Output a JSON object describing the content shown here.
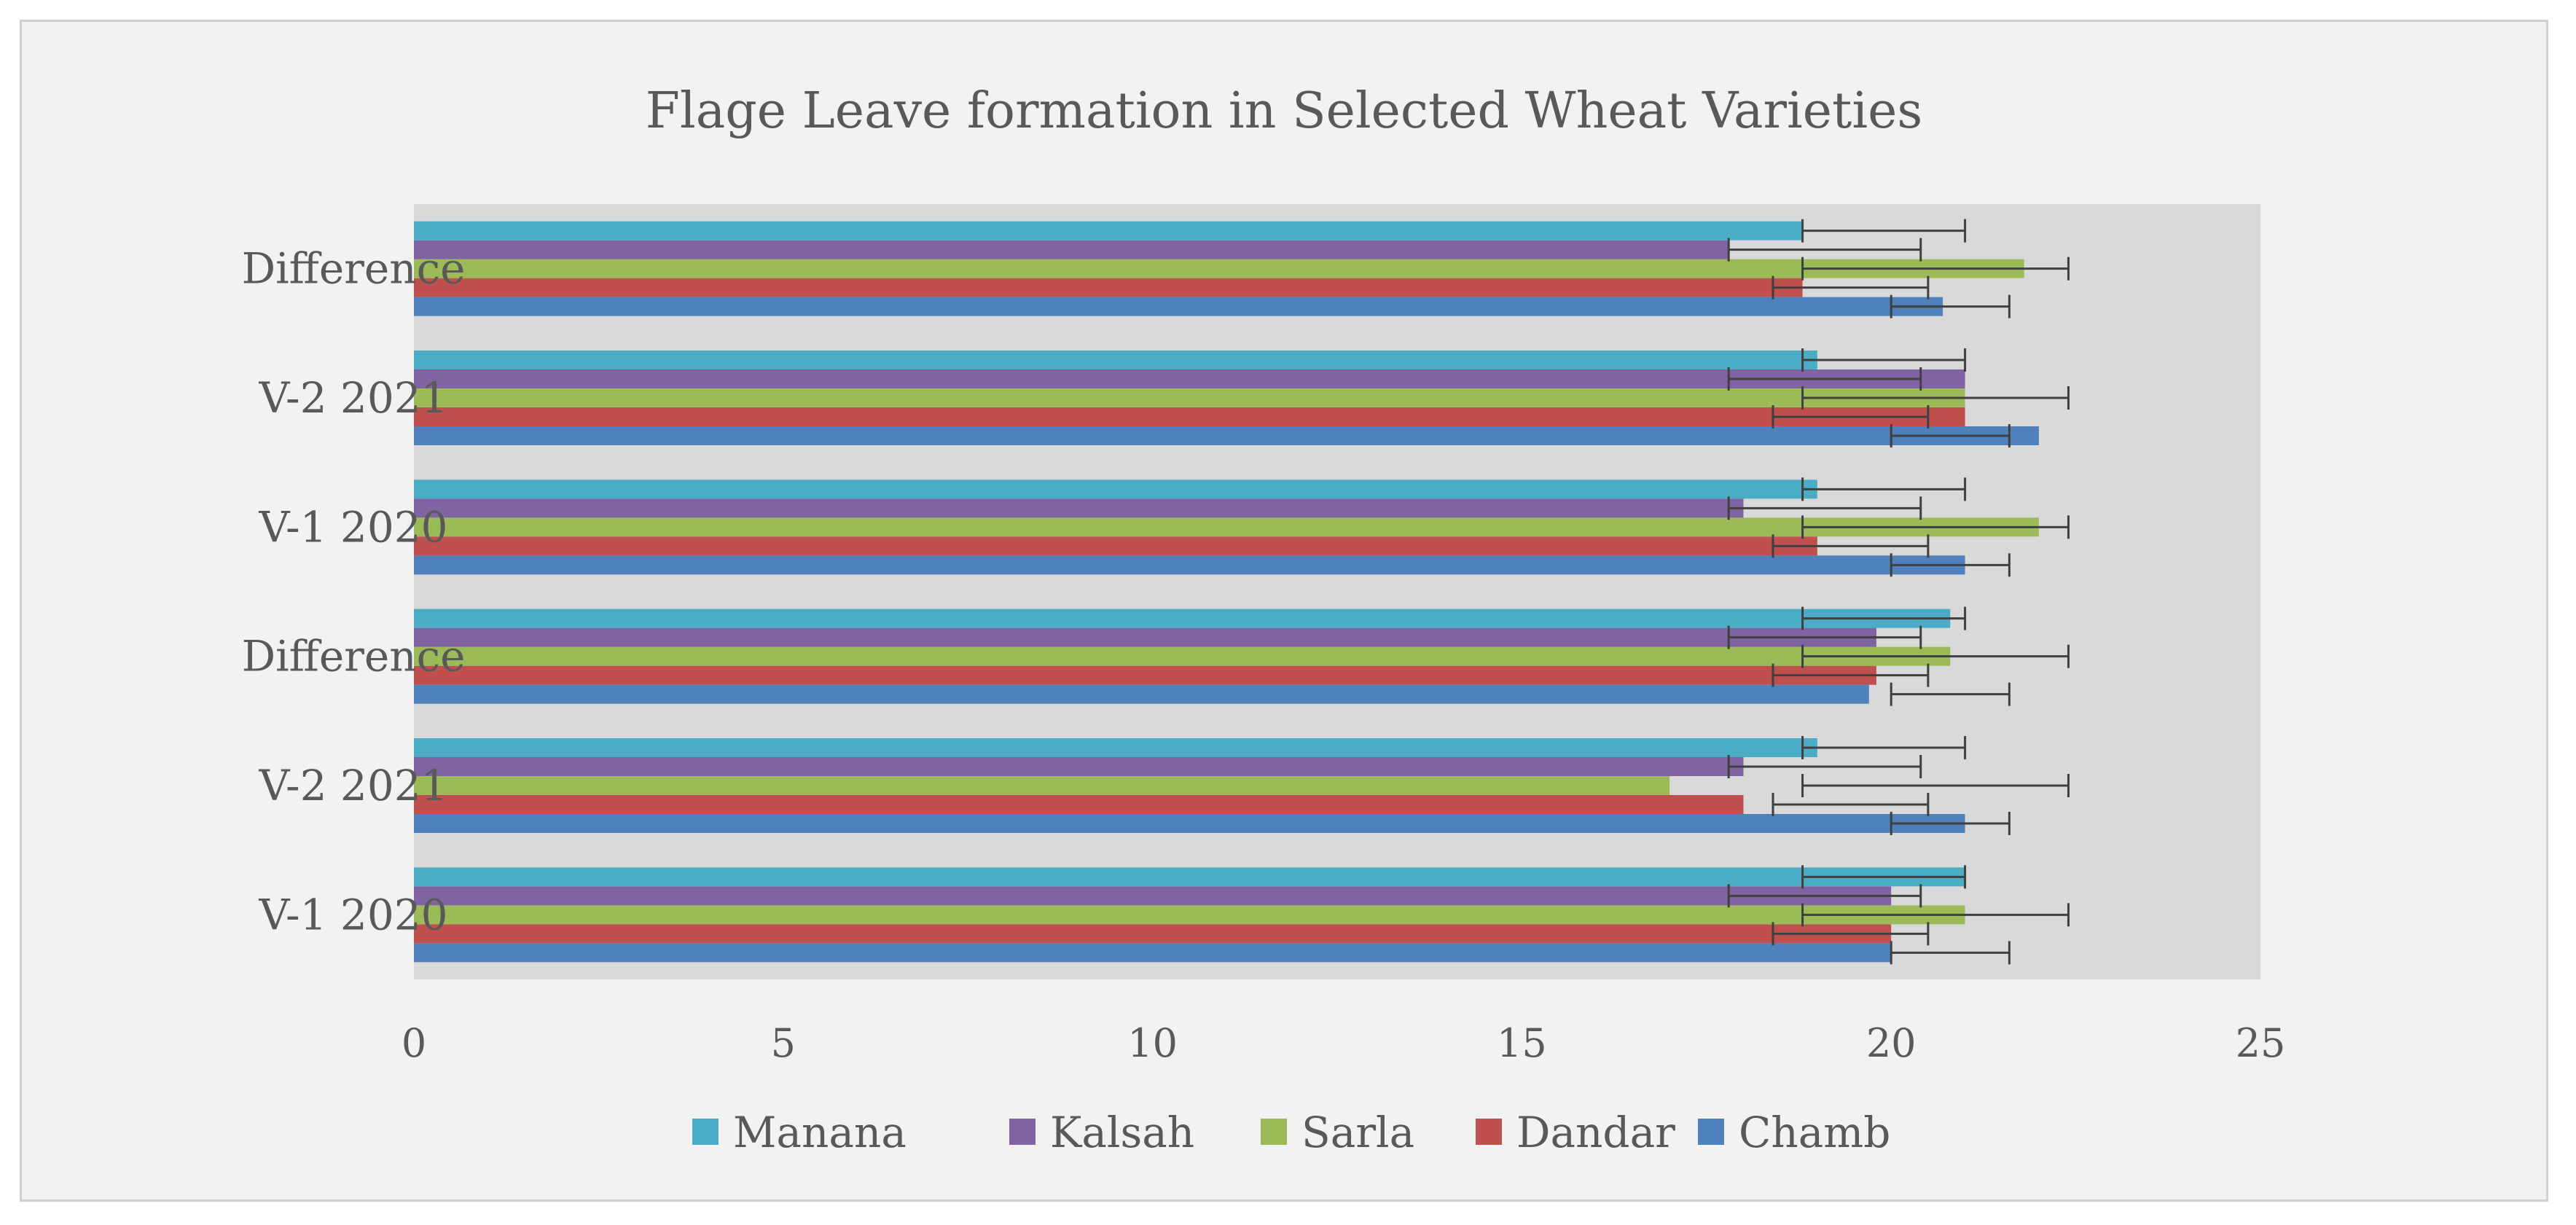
{
  "chart_data": {
    "type": "bar",
    "orientation": "horizontal",
    "title": "Flage Leave formation in Selected Wheat Varieties",
    "categories": [
      "V-1 2020",
      "V-2 2021",
      "Difference",
      "V-1 2020",
      "V-2 2021",
      "Difference"
    ],
    "xlim": [
      0,
      25
    ],
    "xticks": [
      0,
      5,
      10,
      15,
      20,
      25
    ],
    "xlabel": "",
    "ylabel": "",
    "legend_position": "bottom",
    "series": [
      {
        "name": "Chamb",
        "color": "#4f81bd",
        "values": [
          20,
          21,
          19.7,
          21,
          22,
          20.7
        ],
        "error": [
          20.0,
          21.6
        ]
      },
      {
        "name": "Dandar",
        "color": "#c0504d",
        "values": [
          20,
          18,
          19.8,
          19,
          21,
          18.8
        ],
        "error": [
          18.4,
          20.5
        ]
      },
      {
        "name": "Sarla",
        "color": "#9bbb59",
        "values": [
          21,
          17,
          20.8,
          22,
          21,
          21.8
        ],
        "error": [
          18.8,
          22.4
        ]
      },
      {
        "name": "Kalsah",
        "color": "#8064a2",
        "values": [
          20,
          18,
          19.8,
          18,
          21,
          17.8
        ],
        "error": [
          17.8,
          20.4
        ]
      },
      {
        "name": "Manana",
        "color": "#4bacc6",
        "values": [
          21,
          19,
          20.8,
          19,
          19,
          18.8
        ],
        "error": [
          18.8,
          21.0
        ]
      }
    ],
    "legend_order": [
      "Manana",
      "Kalsah",
      "Sarla",
      "Dandar",
      "Chamb"
    ]
  }
}
